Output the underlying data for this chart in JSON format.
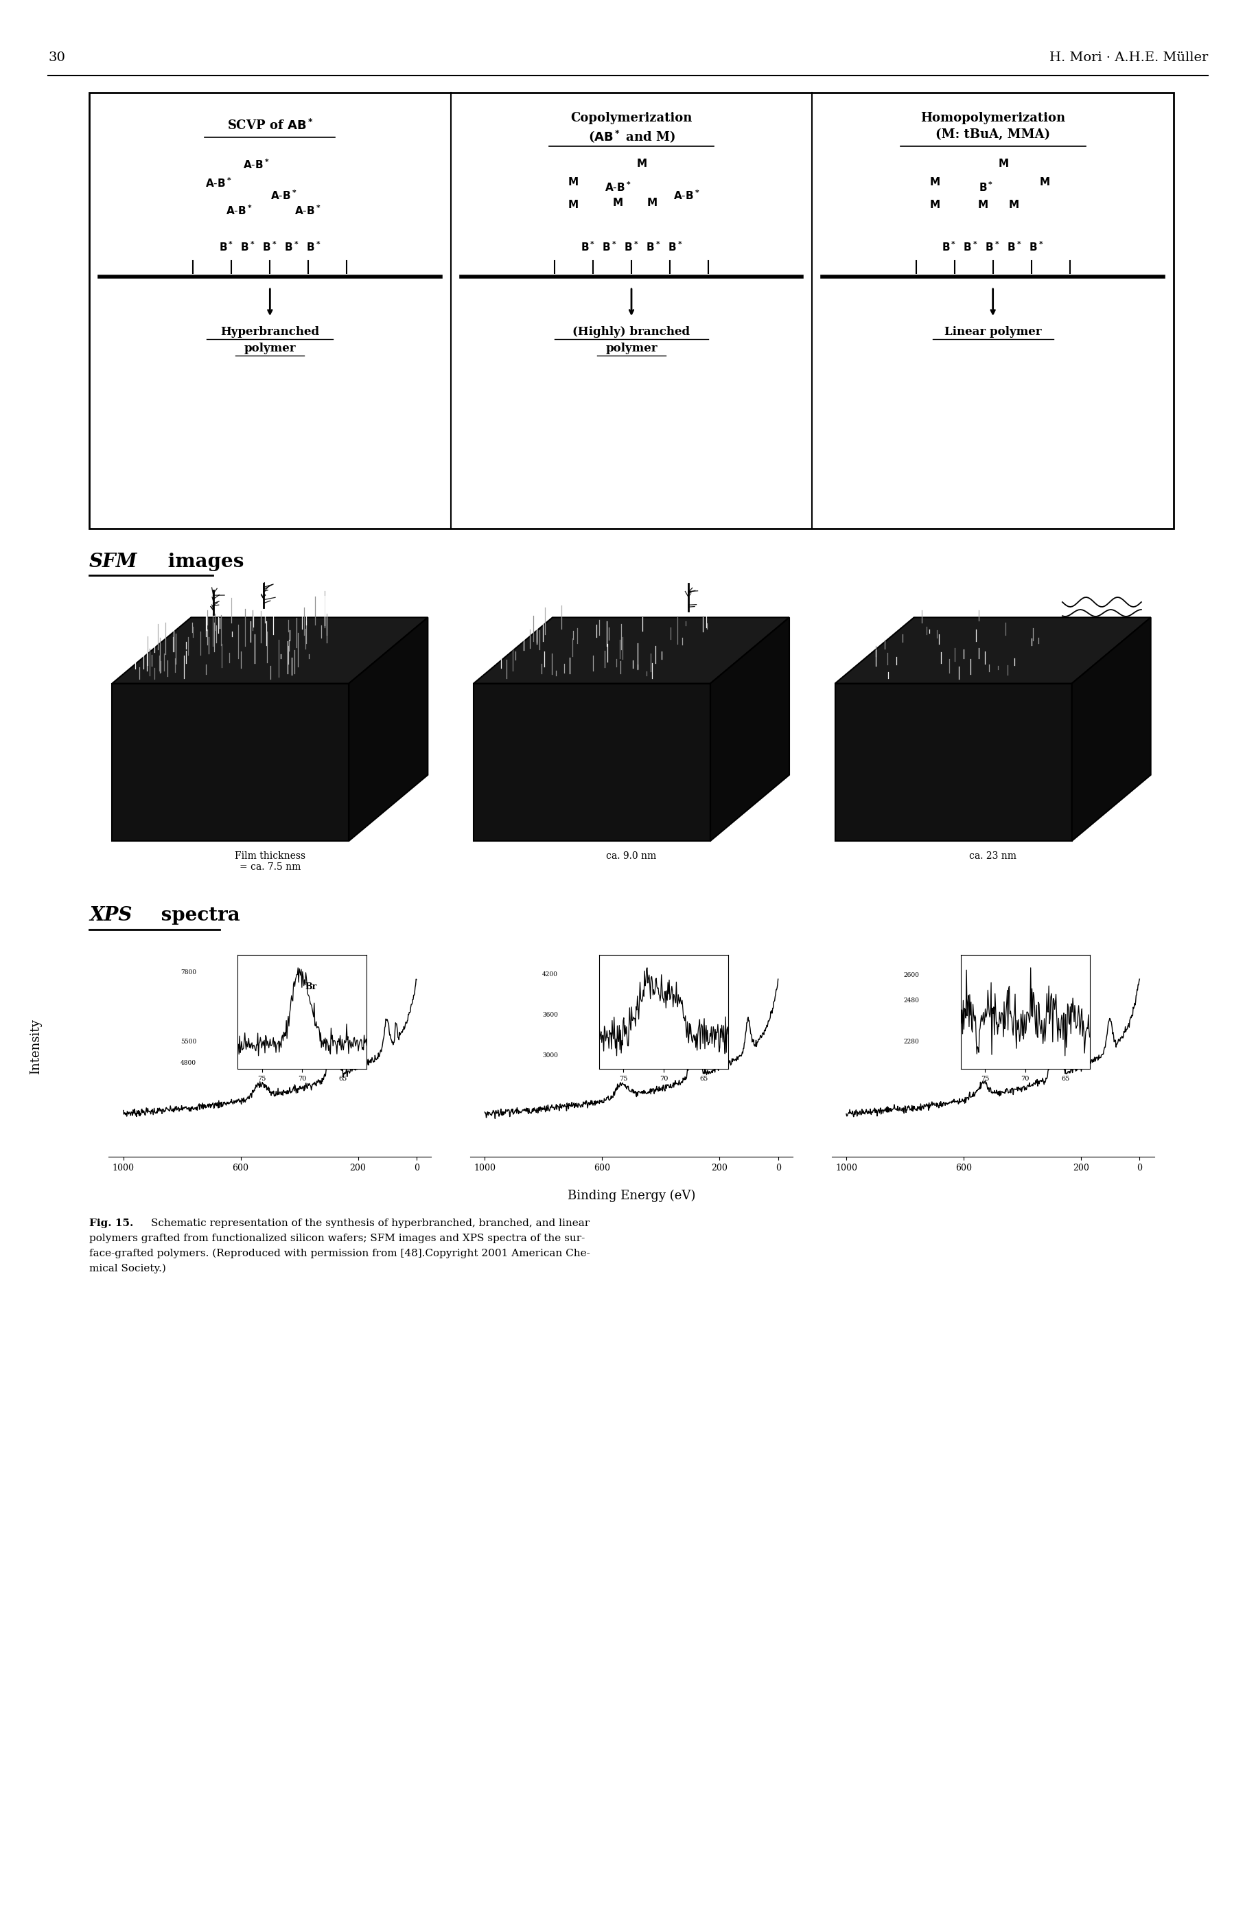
{
  "page_number": "30",
  "header_right": "H. Mori · A.H.E. Müller",
  "background_color": "#ffffff",
  "text_color": "#000000",
  "caption_lines": [
    "Fig. 15.",
    "Schematic representation of the synthesis of hyperbranched, branched, and linear",
    "polymers grafted from functionalized silicon wafers; SFM images and XPS spectra of the sur-",
    "face-grafted polymers. (Reproduced with permission from [48].Copyright 2001 American Che-",
    "mical Society.)"
  ],
  "sfm_label": "SFM images",
  "sfm_thickness": [
    "Film thickness\n= ca. 7.5 nm",
    "ca. 9.0 nm",
    "ca. 23 nm"
  ],
  "xps_label": "XPS spectra",
  "xps_insets": [
    {
      "yticks": [
        "7800",
        "5500",
        "4800"
      ],
      "xticks": [
        75,
        70,
        65
      ],
      "label": "Br",
      "yrange": [
        4600,
        8400
      ]
    },
    {
      "yticks": [
        "4200",
        "3600",
        "3000"
      ],
      "xticks": [
        75,
        70,
        65
      ],
      "label": "",
      "yrange": [
        2800,
        4500
      ]
    },
    {
      "yticks": [
        "2600",
        "2480",
        "2280"
      ],
      "xticks": [
        75,
        70,
        65
      ],
      "label": "",
      "yrange": [
        2150,
        2700
      ]
    }
  ],
  "binding_energy_label": "Binding Energy (eV)",
  "intensity_label": "Intensity"
}
